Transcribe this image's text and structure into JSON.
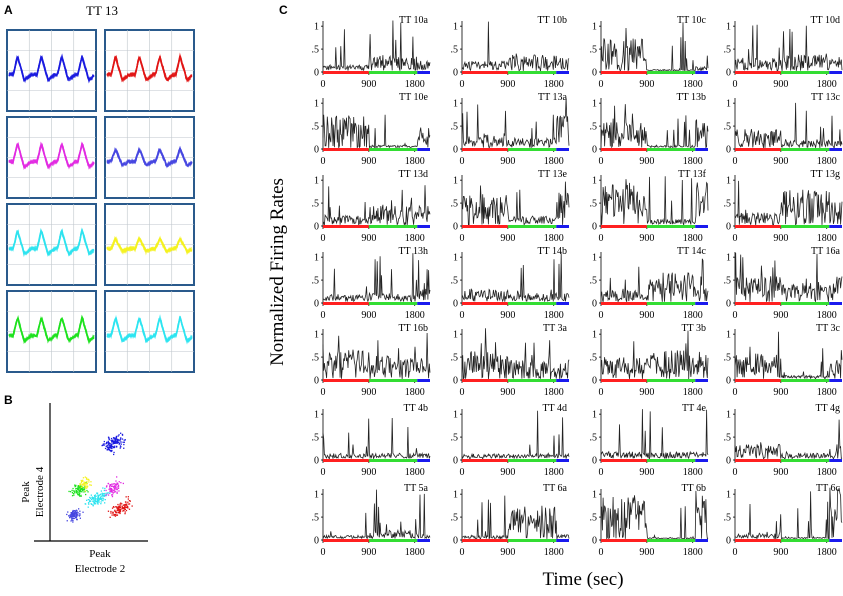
{
  "panel_labels": {
    "a": "A",
    "b": "B",
    "c": "C"
  },
  "panel_a": {
    "title": "TT 13",
    "waveforms": [
      {
        "color": "#1a1adf"
      },
      {
        "color": "#e01414"
      },
      {
        "color": "#e22ae2"
      },
      {
        "color": "#4646e0"
      },
      {
        "color": "#2de3ef"
      },
      {
        "color": "#f4f21e"
      },
      {
        "color": "#1ee21e"
      },
      {
        "color": "#2ce4f0"
      }
    ]
  },
  "panel_b": {
    "ylabel_line1": "Peak",
    "ylabel_line2": "Electrode 4",
    "xlabel_line1": "Peak",
    "xlabel_line2": "Electrode 2"
  },
  "chart_data": {
    "type": "line",
    "title": "",
    "ylabel": "Normalized Firing Rates",
    "xlabel": "Time (sec)",
    "xlim": [
      0,
      2100
    ],
    "ylim": [
      0,
      1.2
    ],
    "xticks": [
      0,
      900,
      1800
    ],
    "xtick_labels": [
      "0",
      "900",
      "1800"
    ],
    "yticks": [
      0,
      0.5,
      1
    ],
    "ytick_labels": [
      "0",
      ".5",
      "1"
    ],
    "epochs": [
      {
        "start": 0,
        "end": 900,
        "color": "#ff2020"
      },
      {
        "start": 900,
        "end": 1850,
        "color": "#33dd33"
      },
      {
        "start": 1850,
        "end": 2100,
        "color": "#1a1aee"
      }
    ],
    "panels": [
      {
        "name": "TT 10a",
        "levels": [
          0.08,
          0.22,
          0.14
        ]
      },
      {
        "name": "TT 10b",
        "levels": [
          0.14,
          0.22,
          0.18
        ]
      },
      {
        "name": "TT 10c",
        "levels": [
          0.45,
          0.02,
          0.06
        ]
      },
      {
        "name": "TT 10d",
        "levels": [
          0.18,
          0.24,
          0.22
        ]
      },
      {
        "name": "TT 10e",
        "levels": [
          0.45,
          0.04,
          0.28
        ]
      },
      {
        "name": "TT 13a",
        "levels": [
          0.2,
          0.14,
          0.45
        ]
      },
      {
        "name": "TT 13b",
        "levels": [
          0.35,
          0.04,
          0.35
        ]
      },
      {
        "name": "TT 13c",
        "levels": [
          0.26,
          0.12,
          0.1
        ]
      },
      {
        "name": "TT 13d",
        "levels": [
          0.14,
          0.28,
          0.26
        ]
      },
      {
        "name": "TT 13e",
        "levels": [
          0.42,
          0.12,
          0.45
        ]
      },
      {
        "name": "TT 13f",
        "levels": [
          0.55,
          0.08,
          0.6
        ]
      },
      {
        "name": "TT 13g",
        "levels": [
          0.18,
          0.48,
          0.35
        ]
      },
      {
        "name": "TT 13h",
        "levels": [
          0.1,
          0.12,
          0.18
        ]
      },
      {
        "name": "TT 14b",
        "levels": [
          0.18,
          0.12,
          0.12
        ]
      },
      {
        "name": "TT 14c",
        "levels": [
          0.16,
          0.42,
          0.26
        ]
      },
      {
        "name": "TT 16a",
        "levels": [
          0.35,
          0.26,
          0.35
        ]
      },
      {
        "name": "TT 16b",
        "levels": [
          0.4,
          0.32,
          0.3
        ]
      },
      {
        "name": "TT 3a",
        "levels": [
          0.38,
          0.26,
          0.28
        ]
      },
      {
        "name": "TT 3b",
        "levels": [
          0.3,
          0.4,
          0.38
        ]
      },
      {
        "name": "TT 3c",
        "levels": [
          0.35,
          0.05,
          0.3
        ]
      },
      {
        "name": "TT 4b",
        "levels": [
          0.08,
          0.08,
          0.08
        ]
      },
      {
        "name": "TT 4d",
        "levels": [
          0.07,
          0.07,
          0.07
        ]
      },
      {
        "name": "TT 4e",
        "levels": [
          0.1,
          0.1,
          0.1
        ]
      },
      {
        "name": "TT 4g",
        "levels": [
          0.2,
          0.08,
          0.22
        ]
      },
      {
        "name": "TT 5a",
        "levels": [
          0.05,
          0.12,
          0.06
        ]
      },
      {
        "name": "TT 6a",
        "levels": [
          0.05,
          0.45,
          0.06
        ]
      },
      {
        "name": "TT 6b",
        "levels": [
          0.6,
          0.02,
          0.6
        ]
      },
      {
        "name": "TT 6c",
        "levels": [
          0.08,
          0.02,
          0.7
        ]
      }
    ]
  },
  "colors": {
    "trace": "#222222",
    "frame_a": "#2a5a8c",
    "grid_a": "#bfc6cc"
  }
}
